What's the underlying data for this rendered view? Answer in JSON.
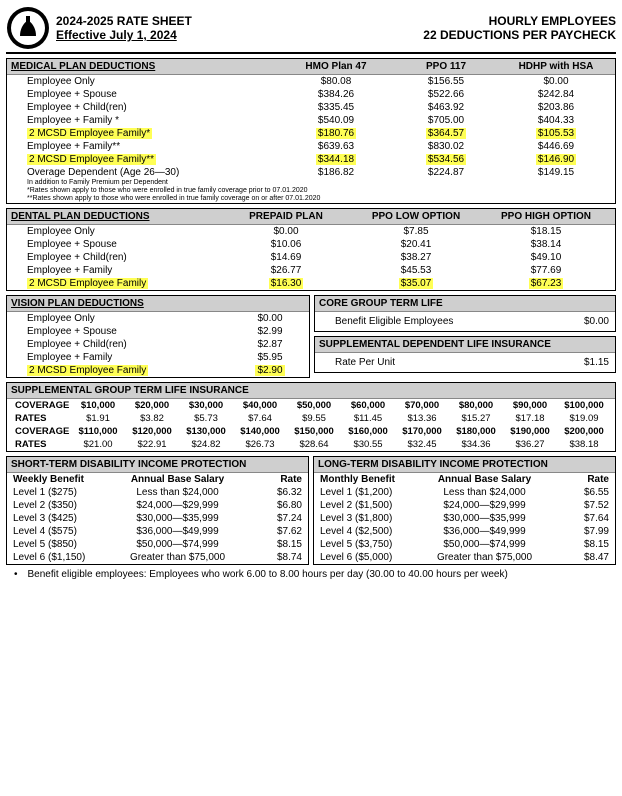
{
  "header": {
    "line1": "2024-2025 RATE SHEET",
    "line2": "Effective July 1, 2024",
    "right1": "HOURLY EMPLOYEES",
    "right2": "22 DEDUCTIONS PER PAYCHECK"
  },
  "medical": {
    "title": "MEDICAL PLAN DEDUCTIONS",
    "cols": [
      "HMO Plan 47",
      "PPO 117",
      "HDHP with HSA"
    ],
    "rows": [
      {
        "label": "Employee Only",
        "vals": [
          "$80.08",
          "$156.55",
          "$0.00"
        ],
        "hl": false
      },
      {
        "label": "Employee + Spouse",
        "vals": [
          "$384.26",
          "$522.66",
          "$242.84"
        ],
        "hl": false
      },
      {
        "label": "Employee + Child(ren)",
        "vals": [
          "$335.45",
          "$463.92",
          "$203.86"
        ],
        "hl": false
      },
      {
        "label": "Employee + Family *",
        "vals": [
          "$540.09",
          "$705.00",
          "$404.33"
        ],
        "hl": false
      },
      {
        "label": "2 MCSD Employee Family*",
        "vals": [
          "$180.76",
          "$364.57",
          "$105.53"
        ],
        "hl": true
      },
      {
        "label": "Employee + Family**",
        "vals": [
          "$639.63",
          "$830.02",
          "$446.69"
        ],
        "hl": false
      },
      {
        "label": "2 MCSD Employee Family**",
        "vals": [
          "$344.18",
          "$534.56",
          "$146.90"
        ],
        "hl": true
      },
      {
        "label": "Overage Dependent (Age 26—30)",
        "vals": [
          "$186.82",
          "$224.87",
          "$149.15"
        ],
        "hl": false
      }
    ],
    "subnote": "In addition to Family Premium per Dependent",
    "footnote1": "*Rates shown apply to those who were enrolled in true family coverage prior to 07.01.2020",
    "footnote2": "**Rates shown apply to those who were enrolled in true family coverage on or after 07.01.2020"
  },
  "dental": {
    "title": "DENTAL PLAN DEDUCTIONS",
    "cols": [
      "PREPAID PLAN",
      "PPO LOW OPTION",
      "PPO HIGH OPTION"
    ],
    "rows": [
      {
        "label": "Employee Only",
        "vals": [
          "$0.00",
          "$7.85",
          "$18.15"
        ],
        "hl": false
      },
      {
        "label": "Employee + Spouse",
        "vals": [
          "$10.06",
          "$20.41",
          "$38.14"
        ],
        "hl": false
      },
      {
        "label": "Employee + Child(ren)",
        "vals": [
          "$14.69",
          "$38.27",
          "$49.10"
        ],
        "hl": false
      },
      {
        "label": "Employee + Family",
        "vals": [
          "$26.77",
          "$45.53",
          "$77.69"
        ],
        "hl": false
      },
      {
        "label": "2 MCSD Employee Family",
        "vals": [
          "$16.30",
          "$35.07",
          "$67.23"
        ],
        "hl": true
      }
    ]
  },
  "vision": {
    "title": "VISION PLAN DEDUCTIONS",
    "rows": [
      {
        "label": "Employee Only",
        "val": "$0.00",
        "hl": false
      },
      {
        "label": "Employee + Spouse",
        "val": "$2.99",
        "hl": false
      },
      {
        "label": "Employee + Child(ren)",
        "val": "$2.87",
        "hl": false
      },
      {
        "label": "Employee + Family",
        "val": "$5.95",
        "hl": false
      },
      {
        "label": "2 MCSD Employee Family",
        "val": "$2.90",
        "hl": true
      }
    ]
  },
  "core_life": {
    "title": "CORE GROUP TERM LIFE",
    "label": "Benefit Eligible Employees",
    "value": "$0.00"
  },
  "supp_dep_life": {
    "title": "SUPPLEMENTAL DEPENDENT LIFE INSURANCE",
    "label": "Rate Per Unit",
    "value": "$1.15"
  },
  "sgtl": {
    "title": "SUPPLEMENTAL GROUP TERM LIFE INSURANCE",
    "cov_label": "COVERAGE",
    "rate_label": "RATES",
    "row1_cov": [
      "$10,000",
      "$20,000",
      "$30,000",
      "$40,000",
      "$50,000",
      "$60,000",
      "$70,000",
      "$80,000",
      "$90,000",
      "$100,000"
    ],
    "row1_rate": [
      "$1.91",
      "$3.82",
      "$5.73",
      "$7.64",
      "$9.55",
      "$11.45",
      "$13.36",
      "$15.27",
      "$17.18",
      "$19.09"
    ],
    "row2_cov": [
      "$110,000",
      "$120,000",
      "$130,000",
      "$140,000",
      "$150,000",
      "$160,000",
      "$170,000",
      "$180,000",
      "$190,000",
      "$200,000"
    ],
    "row2_rate": [
      "$21.00",
      "$22.91",
      "$24.82",
      "$26.73",
      "$28.64",
      "$30.55",
      "$32.45",
      "$34.36",
      "$36.27",
      "$38.18"
    ]
  },
  "std": {
    "title": "SHORT-TERM DISABILITY INCOME PROTECTION",
    "h1": "Weekly Benefit",
    "h2": "Annual Base Salary",
    "h3": "Rate",
    "rows": [
      {
        "b": "Level 1 ($275)",
        "s": "Less than $24,000",
        "r": "$6.32"
      },
      {
        "b": "Level 2 ($350)",
        "s": "$24,000—$29,999",
        "r": "$6.80"
      },
      {
        "b": "Level 3 ($425)",
        "s": "$30,000—$35,999",
        "r": "$7.24"
      },
      {
        "b": "Level 4 ($575)",
        "s": "$36,000—$49,999",
        "r": "$7.62"
      },
      {
        "b": "Level 5 ($850)",
        "s": "$50,000—$74,999",
        "r": "$8.15"
      },
      {
        "b": "Level 6 ($1,150)",
        "s": "Greater than $75,000",
        "r": "$8.74"
      }
    ]
  },
  "ltd": {
    "title": "LONG-TERM DISABILITY INCOME PROTECTION",
    "h1": "Monthly Benefit",
    "h2": "Annual Base Salary",
    "h3": "Rate",
    "rows": [
      {
        "b": "Level 1 ($1,200)",
        "s": "Less than $24,000",
        "r": "$6.55"
      },
      {
        "b": "Level 2 ($1,500)",
        "s": "$24,000—$29,999",
        "r": "$7.52"
      },
      {
        "b": "Level 3 ($1,800)",
        "s": "$30,000—$35,999",
        "r": "$7.64"
      },
      {
        "b": "Level 4 ($2,500)",
        "s": "$36,000—$49,999",
        "r": "$7.99"
      },
      {
        "b": "Level 5 ($3,750)",
        "s": "$50,000—$74,999",
        "r": "$8.15"
      },
      {
        "b": "Level 6 ($5,000)",
        "s": "Greater than $75,000",
        "r": "$8.47"
      }
    ]
  },
  "footer": "Benefit eligible employees: Employees who work 6.00 to 8.00 hours per day (30.00 to 40.00 hours per week)"
}
